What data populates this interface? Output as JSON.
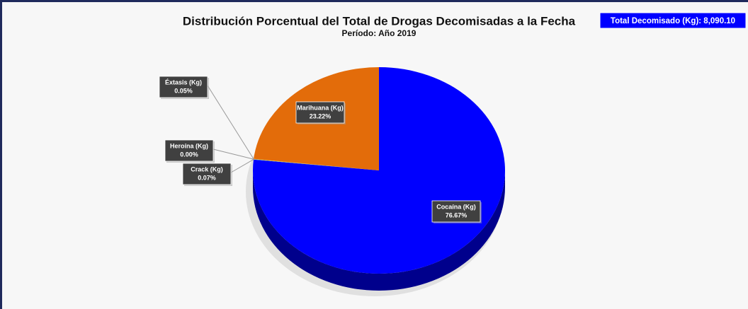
{
  "chart_data": {
    "type": "pie",
    "title": "Distribución Porcentual del Total de Drogas Decomisadas a la Fecha",
    "subtitle": "Período: Año 2019",
    "annotation": "Total Decomisado (Kg): 8,090.10",
    "categories": [
      "Cocaína (Kg)",
      "Crack (Kg)",
      "Heroína (Kg)",
      "Éxtasis (Kg)",
      "Marihuana (Kg)"
    ],
    "values": [
      76.67,
      0.07,
      0.0,
      0.05,
      23.22
    ],
    "value_labels": [
      "76.67%",
      "0.07%",
      "0.00%",
      "0.05%",
      "23.22%"
    ],
    "colors": [
      "#0000ff",
      "#5b9bd5",
      "#a5a5a5",
      "#ffc000",
      "#e36c0a"
    ]
  }
}
